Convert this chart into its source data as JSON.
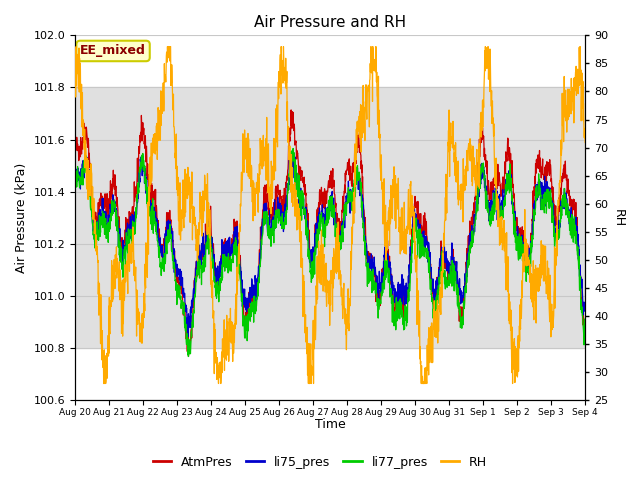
{
  "title": "Air Pressure and RH",
  "xlabel": "Time",
  "ylabel_left": "Air Pressure (kPa)",
  "ylabel_right": "RH",
  "ylim_left": [
    100.6,
    102.0
  ],
  "ylim_right": [
    25,
    90
  ],
  "yticks_left": [
    100.6,
    100.8,
    101.0,
    101.2,
    101.4,
    101.6,
    101.8,
    102.0
  ],
  "yticks_right": [
    25,
    30,
    35,
    40,
    45,
    50,
    55,
    60,
    65,
    70,
    75,
    80,
    85,
    90
  ],
  "xtick_labels": [
    "Aug 20",
    "Aug 21",
    "Aug 22",
    "Aug 23",
    "Aug 24",
    "Aug 25",
    "Aug 26",
    "Aug 27",
    "Aug 28",
    "Aug 29",
    "Aug 30",
    "Aug 31",
    "Sep 1",
    "Sep 2",
    "Sep 3",
    "Sep 4"
  ],
  "n_days": 15,
  "color_atm": "#cc0000",
  "color_li75": "#0000cc",
  "color_li77": "#00cc00",
  "color_rh": "#ffaa00",
  "color_grid": "#c8c8c8",
  "color_band": "#e0e0e0",
  "band_ylim": [
    100.8,
    101.8
  ],
  "annotation_text": "EE_mixed",
  "annotation_color": "#8b0000",
  "annotation_bg": "#ffffcc",
  "annotation_border": "#cccc00",
  "legend_labels": [
    "AtmPres",
    "li75_pres",
    "li77_pres",
    "RH"
  ],
  "legend_colors": [
    "#cc0000",
    "#0000cc",
    "#00cc00",
    "#ffaa00"
  ],
  "seed": 42
}
